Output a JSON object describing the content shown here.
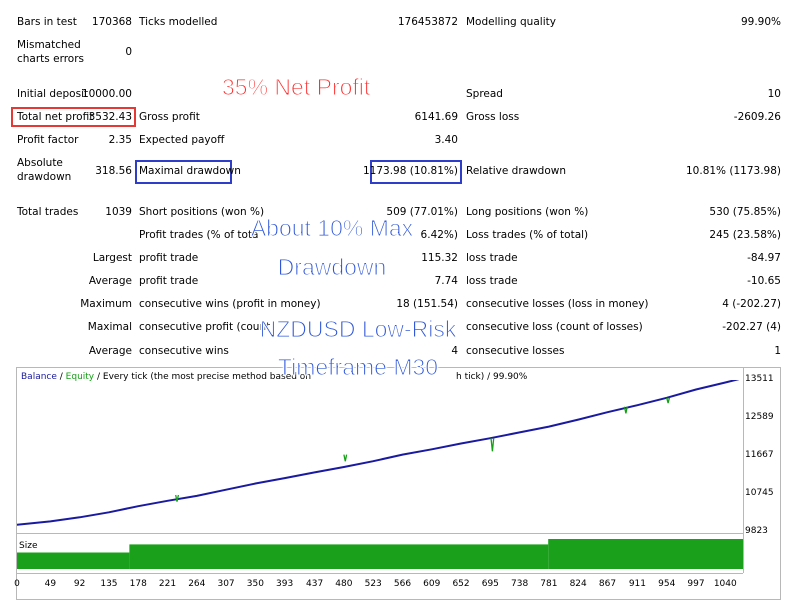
{
  "report": {
    "bars_in_test": {
      "label": "Bars in test",
      "value": "170368"
    },
    "ticks_modelled": {
      "label": "Ticks modelled",
      "value": "176453872"
    },
    "modelling_quality": {
      "label": "Modelling quality",
      "value": "99.90%"
    },
    "mismatched_errors": {
      "label_line1": "Mismatched",
      "label_line2": "charts errors",
      "value": "0"
    },
    "initial_deposit": {
      "label": "Initial deposit",
      "value": "10000.00"
    },
    "spread": {
      "label": "Spread",
      "value": "10"
    },
    "total_net_profit": {
      "label": "Total net profit",
      "value": "3532.43"
    },
    "gross_profit": {
      "label": "Gross profit",
      "value": "6141.69"
    },
    "gross_loss": {
      "label": "Gross loss",
      "value": "-2609.26"
    },
    "profit_factor": {
      "label": "Profit factor",
      "value": "2.35"
    },
    "expected_payoff": {
      "label": "Expected payoff",
      "value": "3.40"
    },
    "absolute_drawdown": {
      "label_line1": "Absolute",
      "label_line2": "drawdown",
      "value": "318.56"
    },
    "maximal_drawdown": {
      "label": "Maximal drawdown",
      "value": "1173.98 (10.81%)"
    },
    "relative_drawdown": {
      "label": "Relative drawdown",
      "value": "10.81% (1173.98)"
    },
    "total_trades": {
      "label": "Total trades",
      "value": "1039"
    },
    "short_positions": {
      "label": "Short positions (won %)",
      "value": "509 (77.01%)"
    },
    "long_positions": {
      "label": "Long positions (won %)",
      "value": "530 (75.85%)"
    },
    "profit_trades": {
      "label": "Profit trades (% of tota",
      "value": "6.42%)"
    },
    "loss_trades": {
      "label": "Loss trades (% of total)",
      "value": "245 (23.58%)"
    },
    "largest": {
      "row_label": "Largest",
      "profit_label": "profit trade",
      "profit_value": "115.32",
      "loss_label": "loss trade",
      "loss_value": "-84.97"
    },
    "average": {
      "row_label": "Average",
      "profit_label": "profit trade",
      "profit_value": "7.74",
      "loss_label": "loss trade",
      "loss_value": "-10.65"
    },
    "maximum": {
      "row_label": "Maximum",
      "wins_label": "consecutive wins (profit in money)",
      "wins_value": "18 (151.54)",
      "losses_label": "consecutive losses (loss in money)",
      "losses_value": "4 (-202.27)"
    },
    "maximal": {
      "row_label": "Maximal",
      "profit_label": "consecutive profit (count",
      "loss_label": "consecutive loss (count of losses)",
      "loss_value": "-202.27 (4)"
    },
    "average_consec": {
      "row_label": "Average",
      "wins_label": "consecutive wins",
      "wins_value": "4",
      "losses_label": "consecutive losses",
      "losses_value": "1"
    }
  },
  "overlays": {
    "net_profit": "35% Net Profit",
    "drawdown_line1": "About 10% Max",
    "drawdown_line2": "Drawdown",
    "symbol_line1": "NZDUSD Low-Risk",
    "symbol_line2": "Timeframe M30"
  },
  "chart": {
    "legend_balance": "Balance",
    "legend_sep1": " / ",
    "legend_equity": "Equity",
    "legend_rest": " / Every tick (the most precise method based on",
    "legend_tail": "h tick)",
    "legend_quality": " / 99.90%",
    "size_label": "Size",
    "colors": {
      "balance": "#1a1aa0",
      "equity": "#14a014",
      "size": "#1aa01a"
    }
  },
  "chart_data": {
    "type": "line",
    "x_ticks": [
      "0",
      "49",
      "92",
      "135",
      "178",
      "221",
      "264",
      "307",
      "350",
      "393",
      "437",
      "480",
      "523",
      "566",
      "609",
      "652",
      "695",
      "738",
      "781",
      "824",
      "867",
      "911",
      "954",
      "997",
      "1040"
    ],
    "y_ticks": [
      "13511",
      "12589",
      "11667",
      "10745",
      "9823"
    ],
    "ylim": [
      9823,
      13511
    ],
    "xlim": [
      0,
      1066
    ],
    "series": [
      {
        "name": "Balance",
        "x": [
          0,
          49,
          92,
          135,
          178,
          221,
          264,
          307,
          350,
          393,
          437,
          480,
          523,
          566,
          609,
          652,
          695,
          738,
          781,
          824,
          867,
          911,
          954,
          997,
          1040,
          1060
        ],
        "y": [
          10000,
          10080,
          10180,
          10300,
          10450,
          10580,
          10700,
          10850,
          11000,
          11130,
          11270,
          11400,
          11540,
          11700,
          11830,
          11970,
          12100,
          12240,
          12380,
          12550,
          12730,
          12900,
          13080,
          13280,
          13450,
          13532
        ]
      },
      {
        "name": "Equity",
        "x": [
          233,
          235,
          237,
          480,
          482,
          484,
          696,
          698,
          700,
          892,
          894,
          896,
          954,
          956,
          958
        ],
        "y": [
          10720,
          10560,
          10720,
          11700,
          11540,
          11700,
          12100,
          11780,
          12100,
          12860,
          12700,
          12860,
          13080,
          12950,
          13080
        ]
      }
    ],
    "size_steps": [
      {
        "x_from": 0,
        "x_to": 165,
        "level": 0.55
      },
      {
        "x_from": 165,
        "x_to": 780,
        "level": 0.82
      },
      {
        "x_from": 780,
        "x_to": 1066,
        "level": 1.0
      }
    ]
  }
}
